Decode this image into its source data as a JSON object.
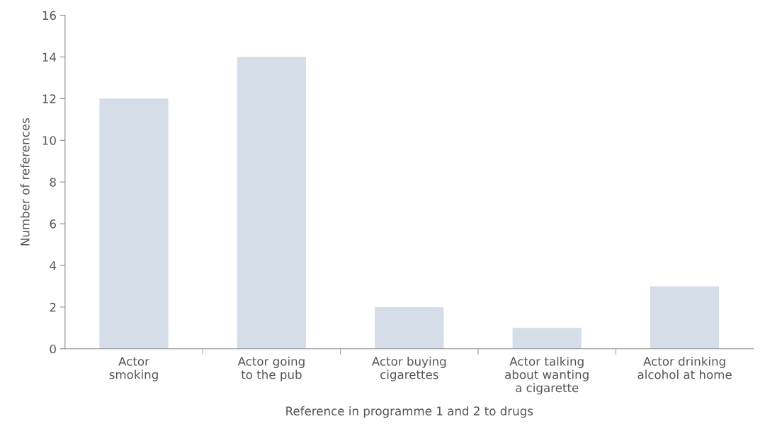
{
  "chart_data": {
    "type": "bar",
    "xlabel": "Reference in programme 1 and 2 to drugs",
    "ylabel": "Number of references",
    "categories": [
      "Actor\nsmoking",
      "Actor going\nto the pub",
      "Actor buying\ncigarettes",
      "Actor talking\nabout wanting\na cigarette",
      "Actor drinking\nalcohol at home"
    ],
    "values": [
      12,
      14,
      2,
      1,
      3
    ],
    "color": "#d5dde8",
    "ylim": [
      0,
      16
    ],
    "yticks": [
      0,
      2,
      4,
      6,
      8,
      10,
      12,
      14,
      16
    ],
    "grid": false,
    "legend": false
  }
}
